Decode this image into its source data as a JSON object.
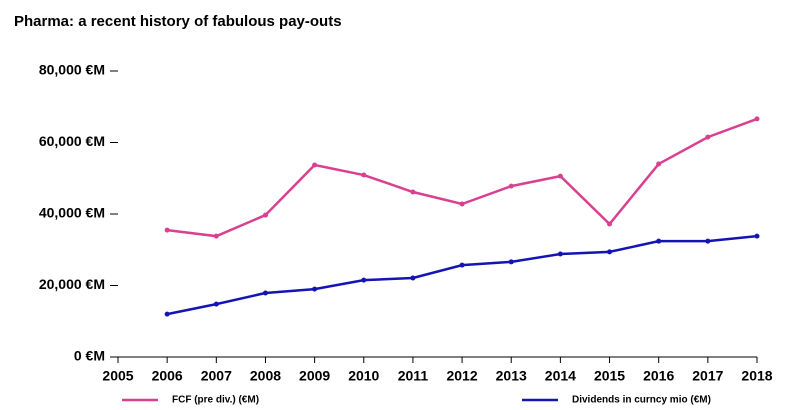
{
  "chart_data": {
    "type": "line",
    "title": "Pharma: a recent history of fabulous pay-outs",
    "x": [
      2006,
      2007,
      2008,
      2009,
      2010,
      2011,
      2012,
      2013,
      2014,
      2015,
      2016,
      2017,
      2018
    ],
    "series": [
      {
        "name": "FCF (pre div.) (€M)",
        "color": "#d9408f",
        "values": [
          35500,
          33800,
          39700,
          53700,
          50900,
          46150,
          42800,
          47800,
          50600,
          37200,
          54000,
          61500,
          66600
        ]
      },
      {
        "name": "Dividends in curncy mio (€M)",
        "color": "#1414b4",
        "values": [
          12000,
          14800,
          17900,
          19000,
          21500,
          22100,
          25700,
          26600,
          28800,
          29400,
          32400,
          32400,
          33800
        ]
      }
    ],
    "xlim": [
      2005,
      2018
    ],
    "xticks": [
      2005,
      2006,
      2007,
      2008,
      2009,
      2010,
      2011,
      2012,
      2013,
      2014,
      2015,
      2016,
      2017,
      2018
    ],
    "ylim": [
      0,
      80000
    ],
    "yticks": [
      {
        "value": 0,
        "label": "0 €M"
      },
      {
        "value": 20000,
        "label": "20,000 €M"
      },
      {
        "value": 40000,
        "label": "40,000 €M"
      },
      {
        "value": 60000,
        "label": "60,000 €M"
      },
      {
        "value": 80000,
        "label": "80,000 €M"
      }
    ],
    "grid": false
  }
}
